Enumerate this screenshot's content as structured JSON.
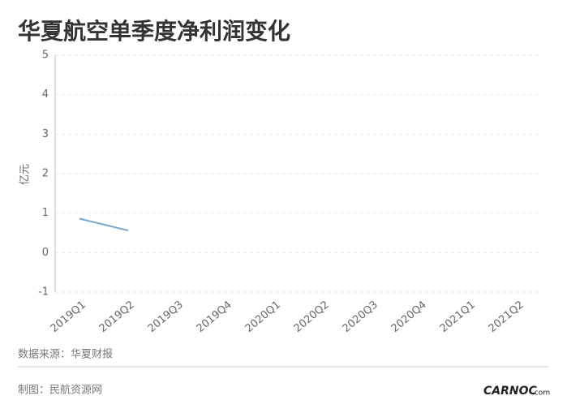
{
  "chart_data": {
    "type": "line",
    "title": "华夏航空单季度净利润变化",
    "y_label": "亿元",
    "categories": [
      "2019Q1",
      "2019Q2",
      "2019Q3",
      "2019Q4",
      "2020Q1",
      "2020Q2",
      "2020Q3",
      "2020Q4",
      "2021Q1",
      "2021Q2"
    ],
    "values": [
      0.86,
      0.56,
      null,
      null,
      null,
      null,
      null,
      null,
      null,
      null
    ],
    "color": "#7aa6c8",
    "ylim": [
      -1,
      5
    ],
    "yticks": [
      -1,
      0,
      1,
      2,
      3,
      4,
      5
    ],
    "grid": true
  },
  "footer": {
    "source": "数据来源：华夏财报",
    "credit": "制图：民航资源网",
    "logo": "CARNOC",
    "logo_suffix": ".com"
  }
}
